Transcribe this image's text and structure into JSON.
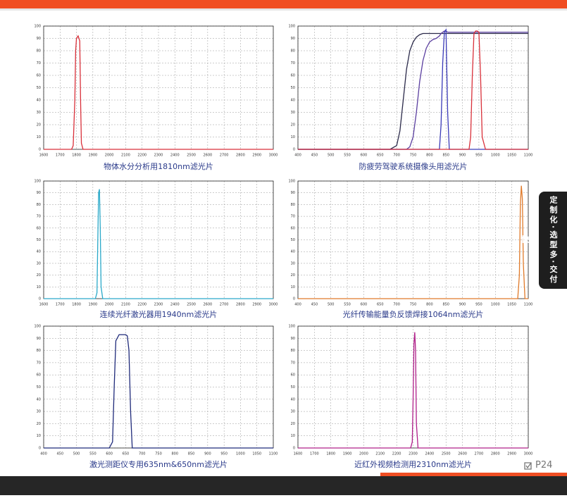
{
  "chart_data": [
    {
      "type": "line",
      "title": "物体水分分析用1810nm滤光片",
      "x": [
        1600,
        1770,
        1780,
        1790,
        1795,
        1800,
        1810,
        1820,
        1825,
        1830,
        1840,
        3000
      ],
      "series": [
        {
          "color": "#d9303a",
          "values": [
            0,
            0,
            3,
            40,
            80,
            90,
            92,
            88,
            40,
            5,
            0,
            0
          ]
        }
      ],
      "xlim": [
        1600,
        3000
      ],
      "xticks": [
        1600,
        1700,
        1800,
        1900,
        2000,
        2100,
        2200,
        2300,
        2400,
        2500,
        2600,
        2700,
        2800,
        2900,
        3000
      ],
      "ylim": [
        0,
        100
      ],
      "yticks": [
        0,
        10,
        20,
        30,
        40,
        50,
        60,
        70,
        80,
        90,
        100
      ],
      "grid": true
    },
    {
      "type": "line",
      "title": "防疲劳驾驶系统摄像头用滤光片",
      "x": [
        400,
        680,
        700,
        710,
        720,
        730,
        740,
        750,
        760,
        770,
        780,
        790,
        800,
        810,
        820,
        830,
        835,
        840,
        845,
        850,
        855,
        860,
        900,
        920,
        925,
        930,
        935,
        940,
        945,
        950,
        955,
        960,
        970,
        1000,
        1100
      ],
      "series": [
        {
          "color": "#2b2a4a",
          "values": [
            0,
            0,
            3,
            15,
            40,
            65,
            80,
            87,
            91,
            93,
            94,
            94,
            94,
            94,
            94,
            94,
            94,
            94,
            94,
            94,
            94,
            94,
            94,
            94,
            94,
            94,
            94,
            94,
            94,
            94,
            94,
            94,
            94,
            94,
            94
          ]
        },
        {
          "color": "#5b3fa0",
          "values": [
            0,
            0,
            0,
            0,
            0,
            0,
            2,
            10,
            30,
            55,
            72,
            82,
            87,
            89,
            90,
            92,
            94,
            95,
            96,
            96,
            95,
            95,
            95,
            95,
            95,
            95,
            95,
            95,
            95,
            95,
            95,
            95,
            95,
            95,
            95
          ]
        },
        {
          "color": "#3a3ab8",
          "values": [
            0,
            0,
            0,
            0,
            0,
            0,
            0,
            0,
            0,
            0,
            0,
            0,
            0,
            0,
            0,
            0,
            20,
            70,
            95,
            97,
            30,
            0,
            0,
            0,
            0,
            0,
            0,
            0,
            0,
            0,
            0,
            0,
            0,
            0,
            0
          ]
        },
        {
          "color": "#d9303a",
          "values": [
            0,
            0,
            0,
            0,
            0,
            0,
            0,
            0,
            0,
            0,
            0,
            0,
            0,
            0,
            0,
            0,
            0,
            0,
            0,
            0,
            0,
            0,
            0,
            0,
            10,
            60,
            94,
            96,
            96,
            95,
            60,
            10,
            0,
            0,
            0
          ]
        }
      ],
      "xlim": [
        400,
        1100
      ],
      "xticks": [
        400,
        450,
        500,
        550,
        600,
        650,
        700,
        750,
        800,
        850,
        900,
        950,
        1000,
        1050,
        1100
      ],
      "ylim": [
        0,
        100
      ],
      "yticks": [
        0,
        10,
        20,
        30,
        40,
        50,
        60,
        70,
        80,
        90,
        100
      ],
      "grid": true
    },
    {
      "type": "line",
      "title": "连续光纤激光器用1940nm滤光片",
      "x": [
        1600,
        1915,
        1925,
        1930,
        1935,
        1940,
        1945,
        1950,
        1960,
        3000
      ],
      "series": [
        {
          "color": "#2aa9c9",
          "values": [
            0,
            0,
            5,
            50,
            90,
            93,
            60,
            10,
            0,
            0
          ]
        }
      ],
      "xlim": [
        1600,
        3000
      ],
      "xticks": [
        1600,
        1700,
        1800,
        1900,
        2000,
        2100,
        2200,
        2300,
        2400,
        2500,
        2600,
        2700,
        2800,
        2900,
        3000
      ],
      "ylim": [
        0,
        100
      ],
      "yticks": [
        0,
        10,
        20,
        30,
        40,
        50,
        60,
        70,
        80,
        90,
        100
      ],
      "grid": true
    },
    {
      "type": "line",
      "title": "光纤传输能量负反馈焊接1064nm滤光片",
      "x": [
        400,
        1068,
        1073,
        1076,
        1079,
        1082,
        1085,
        1090,
        1100
      ],
      "series": [
        {
          "color": "#e07a2a",
          "values": [
            0,
            0,
            20,
            80,
            96,
            85,
            30,
            0,
            0
          ]
        }
      ],
      "xlim": [
        400,
        1100
      ],
      "xticks": [
        400,
        450,
        500,
        550,
        600,
        650,
        700,
        750,
        800,
        850,
        900,
        950,
        1000,
        1050,
        1100
      ],
      "ylim": [
        0,
        100
      ],
      "yticks": [
        0,
        10,
        20,
        30,
        40,
        50,
        60,
        70,
        80,
        90,
        100
      ],
      "grid": true
    },
    {
      "type": "line",
      "title": "激光测距仪专用635nm&650nm滤光片",
      "x": [
        400,
        600,
        610,
        615,
        620,
        630,
        640,
        650,
        655,
        660,
        665,
        670,
        1100
      ],
      "series": [
        {
          "color": "#1f2a7a",
          "values": [
            0,
            0,
            5,
            50,
            88,
            93,
            93,
            93,
            92,
            80,
            30,
            0,
            0
          ]
        }
      ],
      "xlim": [
        400,
        1100
      ],
      "xticks": [
        400,
        450,
        500,
        550,
        600,
        650,
        700,
        750,
        800,
        850,
        900,
        950,
        1000,
        1050,
        1100
      ],
      "ylim": [
        0,
        100
      ],
      "yticks": [
        0,
        10,
        20,
        30,
        40,
        50,
        60,
        70,
        80,
        90,
        100
      ],
      "grid": true
    },
    {
      "type": "line",
      "title": "近红外视频检测用2310nm滤光片",
      "x": [
        1600,
        2285,
        2295,
        2300,
        2305,
        2310,
        2315,
        2320,
        2330,
        3000
      ],
      "series": [
        {
          "color": "#b0208a",
          "values": [
            0,
            0,
            5,
            40,
            85,
            95,
            80,
            20,
            0,
            0
          ]
        }
      ],
      "xlim": [
        1600,
        3000
      ],
      "xticks": [
        1600,
        1700,
        1800,
        1900,
        2000,
        2100,
        2200,
        2300,
        2400,
        2500,
        2600,
        2700,
        2800,
        2900,
        3000
      ],
      "ylim": [
        0,
        100
      ],
      "yticks": [
        0,
        10,
        20,
        30,
        40,
        50,
        60,
        70,
        80,
        90,
        100
      ],
      "grid": true
    }
  ],
  "side_tab": "定制化·选型多·交付快",
  "page_number": "P24"
}
